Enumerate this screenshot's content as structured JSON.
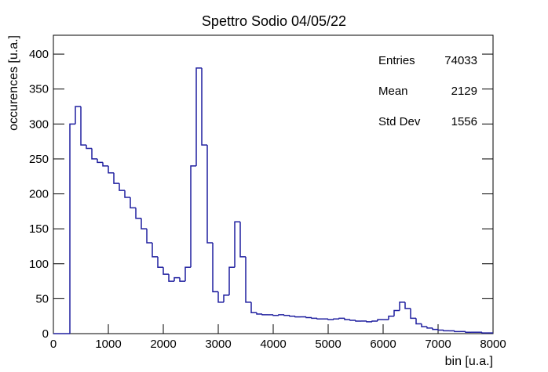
{
  "chart_data": {
    "type": "histogram",
    "title": "Spettro Sodio 04/05/22",
    "x_label": "bin [u.a.]",
    "y_label": "occurences [u.a.]",
    "bins": [
      0,
      100,
      200,
      300,
      400,
      500,
      600,
      700,
      800,
      900,
      1000,
      1100,
      1200,
      1300,
      1400,
      1500,
      1600,
      1700,
      1800,
      1900,
      2000,
      2100,
      2200,
      2300,
      2400,
      2500,
      2600,
      2700,
      2800,
      2900,
      3000,
      3100,
      3200,
      3300,
      3400,
      3500,
      3600,
      3700,
      3800,
      3900,
      4000,
      4100,
      4200,
      4300,
      4400,
      4500,
      4600,
      4700,
      4800,
      4900,
      5000,
      5100,
      5200,
      5300,
      5400,
      5500,
      5600,
      5700,
      5800,
      5900,
      6000,
      6100,
      6200,
      6300,
      6400,
      6500,
      6600,
      6700,
      6800,
      6900,
      7000,
      7100,
      7200,
      7300,
      7400,
      7500,
      7600,
      7700,
      7800,
      7900,
      8000
    ],
    "counts": [
      0,
      0,
      0,
      300,
      325,
      270,
      265,
      250,
      245,
      240,
      230,
      215,
      205,
      195,
      180,
      165,
      150,
      130,
      110,
      95,
      85,
      75,
      80,
      75,
      95,
      240,
      380,
      270,
      130,
      60,
      45,
      55,
      95,
      160,
      110,
      45,
      30,
      28,
      27,
      27,
      26,
      27,
      26,
      25,
      24,
      24,
      23,
      22,
      21,
      21,
      20,
      21,
      22,
      20,
      19,
      18,
      18,
      17,
      18,
      20,
      20,
      25,
      33,
      45,
      36,
      22,
      14,
      10,
      8,
      6,
      5,
      4,
      4,
      3,
      3,
      2,
      2,
      2,
      1,
      1
    ],
    "color": "#1f1f9f",
    "xlim": [
      0,
      8000
    ],
    "xticks": [
      0,
      1000,
      2000,
      3000,
      4000,
      5000,
      6000,
      7000,
      8000
    ],
    "ylim": [
      0,
      427
    ],
    "yticks": [
      0,
      50,
      100,
      150,
      200,
      250,
      300,
      350,
      400
    ],
    "stats": [
      {
        "label": "Entries",
        "value": "74033"
      },
      {
        "label": "Mean",
        "value": "2129"
      },
      {
        "label": "Std Dev",
        "value": "1556"
      }
    ]
  }
}
